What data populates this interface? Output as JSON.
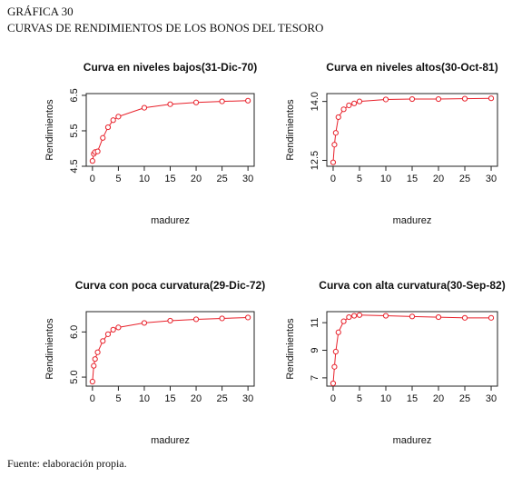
{
  "figure_label": "GRÁFICA 30",
  "figure_title": "CURVAS DE RENDIMIENTOS DE LOS BONOS DEL TESORO",
  "source": "Fuente: elaboración propia.",
  "chart_data": [
    {
      "type": "line",
      "title": "Curva en niveles bajos(31-Dic-70)",
      "xlabel": "madurez",
      "ylabel": "Rendimientos",
      "color": "#e8202a",
      "x": [
        0,
        0.25,
        0.5,
        1,
        2,
        3,
        4,
        5,
        10,
        15,
        20,
        25,
        30
      ],
      "values": [
        4.65,
        4.85,
        4.9,
        4.92,
        5.3,
        5.6,
        5.8,
        5.9,
        6.15,
        6.25,
        6.3,
        6.33,
        6.35
      ],
      "xlim": [
        -1.2,
        31.2
      ],
      "xticks": [
        0,
        5,
        10,
        15,
        20,
        25,
        30
      ],
      "ylim": [
        4.5,
        6.55
      ],
      "yticks": [
        4.5,
        5.5,
        6.5
      ]
    },
    {
      "type": "line",
      "title": "Curva en niveles altos(30-Oct-81)",
      "xlabel": "madurez",
      "ylabel": "Rendimientos",
      "color": "#e8202a",
      "x": [
        0,
        0.25,
        0.5,
        1,
        2,
        3,
        4,
        5,
        10,
        15,
        20,
        25,
        30
      ],
      "values": [
        12.45,
        12.9,
        13.2,
        13.6,
        13.8,
        13.9,
        13.95,
        14.0,
        14.05,
        14.06,
        14.06,
        14.07,
        14.08
      ],
      "xlim": [
        -1.2,
        31.2
      ],
      "xticks": [
        0,
        5,
        10,
        15,
        20,
        25,
        30
      ],
      "ylim": [
        12.35,
        14.2
      ],
      "yticks": [
        12.5,
        {
          "value": 14,
          "label": "14.0"
        }
      ]
    },
    {
      "type": "line",
      "title": "Curva con poca curvatura(29-Dic-72)",
      "xlabel": "madurez",
      "ylabel": "Rendimientos",
      "color": "#e8202a",
      "x": [
        0,
        0.25,
        0.5,
        1,
        2,
        3,
        4,
        5,
        10,
        15,
        20,
        25,
        30
      ],
      "values": [
        4.9,
        5.25,
        5.4,
        5.55,
        5.8,
        5.95,
        6.05,
        6.1,
        6.2,
        6.25,
        6.28,
        6.3,
        6.32
      ],
      "xlim": [
        -1.2,
        31.2
      ],
      "xticks": [
        0,
        5,
        10,
        15,
        20,
        25,
        30
      ],
      "ylim": [
        4.8,
        6.45
      ],
      "yticks": [
        {
          "value": 5,
          "label": "5.0"
        },
        {
          "value": 6,
          "label": "6.0"
        }
      ]
    },
    {
      "type": "line",
      "title": "Curva con alta curvatura(30-Sep-82)",
      "xlabel": "madurez",
      "ylabel": "Rendimientos",
      "color": "#e8202a",
      "x": [
        0,
        0.25,
        0.5,
        1,
        2,
        3,
        4,
        5,
        10,
        15,
        20,
        25,
        30
      ],
      "values": [
        6.6,
        7.8,
        8.9,
        10.3,
        11.1,
        11.4,
        11.5,
        11.55,
        11.5,
        11.45,
        11.4,
        11.35,
        11.35
      ],
      "xlim": [
        -1.2,
        31.2
      ],
      "xticks": [
        0,
        5,
        10,
        15,
        20,
        25,
        30
      ],
      "ylim": [
        6.4,
        11.8
      ],
      "yticks": [
        7,
        9,
        11
      ]
    }
  ]
}
